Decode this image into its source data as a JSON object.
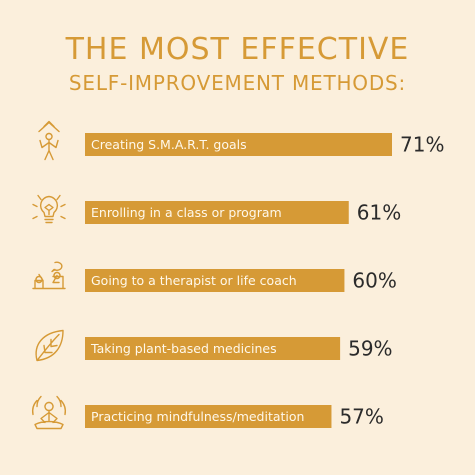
{
  "title_line1": "THE MOST EFFECTIVE",
  "title_line2": "SELF-IMPROVEMENT METHODS:",
  "colors": {
    "background": "#fbefdc",
    "accent": "#d69a36",
    "bar_text": "#fff8ea",
    "value_text": "#2b2b2b"
  },
  "icons": [
    "person-goal-icon",
    "lightbulb-learning-icon",
    "therapy-session-icon",
    "leaf-icon",
    "meditation-icon"
  ],
  "chart_data": {
    "type": "bar",
    "orientation": "horizontal",
    "categories": [
      "Creating S.M.A.R.T. goals",
      "Enrolling in a class or program",
      "Going to a therapist or life coach",
      "Taking plant-based medicines",
      "Practicing mindfulness/meditation"
    ],
    "values": [
      71,
      61,
      60,
      59,
      57
    ],
    "value_labels": [
      "71%",
      "61%",
      "60%",
      "59%",
      "57%"
    ],
    "value_unit": "%",
    "grid": false,
    "legend": "none"
  }
}
